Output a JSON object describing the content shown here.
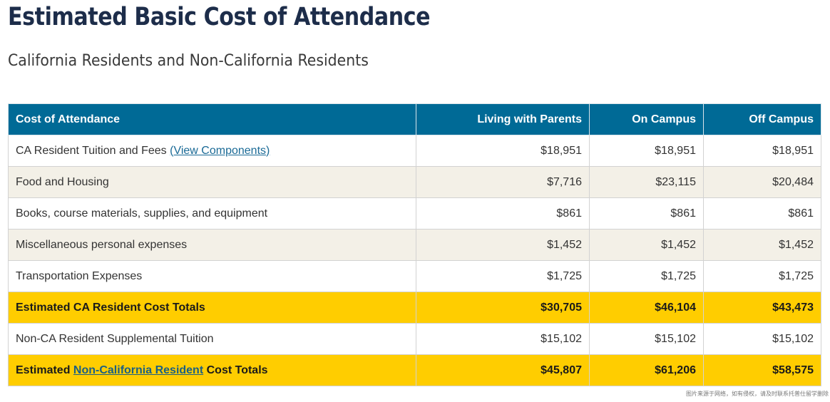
{
  "title": "Estimated Basic Cost of Attendance",
  "subtitle": "California Residents and Non-California Residents",
  "table": {
    "headers": {
      "category": "Cost of Attendance",
      "living_with_parents": "Living with Parents",
      "on_campus": "On Campus",
      "off_campus": "Off Campus"
    },
    "rows": [
      {
        "label": "CA Resident Tuition and Fees",
        "link": "(View Components)",
        "values": [
          "$18,951",
          "$18,951",
          "$18,951"
        ]
      },
      {
        "label": "Food and Housing",
        "values": [
          "$7,716",
          "$23,115",
          "$20,484"
        ]
      },
      {
        "label": "Books, course materials, supplies, and equipment",
        "values": [
          "$861",
          "$861",
          "$861"
        ]
      },
      {
        "label": "Miscellaneous personal expenses",
        "values": [
          "$1,452",
          "$1,452",
          "$1,452"
        ]
      },
      {
        "label": "Transportation Expenses",
        "values": [
          "$1,725",
          "$1,725",
          "$1,725"
        ]
      },
      {
        "label": "Estimated CA Resident Cost Totals",
        "values": [
          "$30,705",
          "$46,104",
          "$43,473"
        ]
      },
      {
        "label": "Non-CA Resident Supplemental Tuition",
        "values": [
          "$15,102",
          "$15,102",
          "$15,102"
        ]
      },
      {
        "label_prefix": "Estimated",
        "link": "Non-California Resident",
        "label_suffix": "Cost Totals",
        "values": [
          "$45,807",
          "$61,206",
          "$58,575"
        ]
      }
    ]
  },
  "watermark": "图片来源于网络，如有侵权，请及时联系托普仕留学删除"
}
